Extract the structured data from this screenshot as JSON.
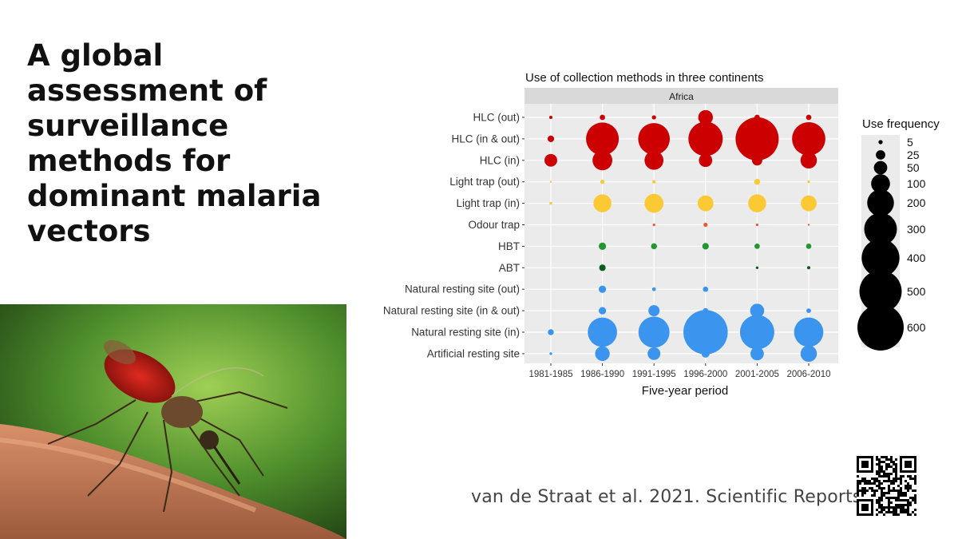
{
  "slide": {
    "title": "A global assessment of surveillance methods for dominant malaria vectors",
    "citation": "van de Straat et al. 2021. Scientific Reports"
  },
  "photo": {
    "subject": "mosquito-photo"
  },
  "chart_data": {
    "type": "scatter",
    "title": "Use of collection methods in three continents",
    "facet_label": "Africa",
    "xlabel": "Five-year period",
    "ylabel": "",
    "x_categories": [
      "1981-1985",
      "1986-1990",
      "1991-1995",
      "1996-2000",
      "2001-2005",
      "2006-2010"
    ],
    "y_categories": [
      "HLC (out)",
      "HLC (in & out)",
      "HLC (in)",
      "Light trap (out)",
      "Light trap (in)",
      "Odour trap",
      "HBT",
      "ABT",
      "Natural resting site (out)",
      "Natural resting site (in & out)",
      "Natural resting site (in)",
      "Artificial resting site"
    ],
    "legend_title": "Use frequency",
    "legend_values": [
      5,
      25,
      50,
      100,
      200,
      300,
      400,
      500,
      600
    ],
    "legend_placement": "right",
    "grid": true,
    "colors": {
      "HLC (out)": "#cc0000",
      "HLC (in & out)": "#cc0000",
      "HLC (in)": "#cc0000",
      "Light trap (out)": "#fbc934",
      "Light trap (in)": "#fbc934",
      "Odour trap": "#ef5a3c",
      "HBT": "#22962f",
      "ABT": "#0d5e1b",
      "Natural resting site (out)": "#3b94ee",
      "Natural resting site (in & out)": "#3b94ee",
      "Natural resting site (in)": "#3b94ee",
      "Artificial resting site": "#3b94ee"
    },
    "points": [
      {
        "method": "HLC (out)",
        "values": [
          3,
          8,
          5,
          60,
          8,
          8
        ]
      },
      {
        "method": "HLC (in & out)",
        "values": [
          12,
          300,
          280,
          330,
          520,
          310
        ]
      },
      {
        "method": "HLC (in)",
        "values": [
          45,
          110,
          100,
          50,
          30,
          75
        ]
      },
      {
        "method": "Light trap (out)",
        "values": [
          1,
          5,
          3,
          0,
          10,
          2
        ]
      },
      {
        "method": "Light trap (in)",
        "values": [
          2,
          90,
          100,
          70,
          90,
          70
        ]
      },
      {
        "method": "Odour trap",
        "values": [
          0,
          0,
          2,
          5,
          2,
          1
        ]
      },
      {
        "method": "HBT",
        "values": [
          0,
          15,
          10,
          12,
          8,
          8
        ]
      },
      {
        "method": "ABT",
        "values": [
          0,
          12,
          0,
          0,
          2,
          3
        ]
      },
      {
        "method": "Natural resting site (out)",
        "values": [
          0,
          15,
          4,
          8,
          0,
          0
        ]
      },
      {
        "method": "Natural resting site (in & out)",
        "values": [
          0,
          15,
          35,
          8,
          55,
          6
        ]
      },
      {
        "method": "Natural resting site (in)",
        "values": [
          10,
          240,
          270,
          550,
          330,
          240
        ]
      },
      {
        "method": "Artificial resting site",
        "values": [
          2,
          60,
          45,
          18,
          50,
          75
        ]
      }
    ]
  }
}
